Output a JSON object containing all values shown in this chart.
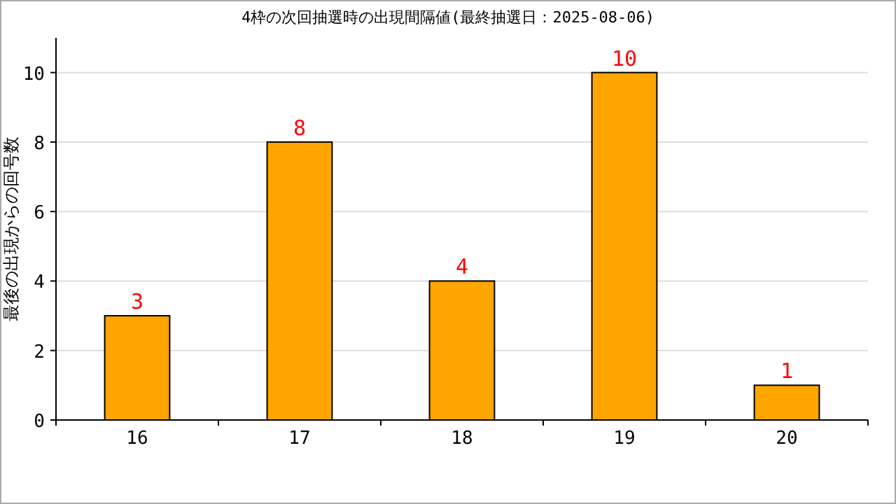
{
  "chart_data": {
    "type": "bar",
    "title": "4枠の次回抽選時の出現間隔値(最終抽選日：2025-08-06)",
    "ylabel": "最後の出現からの回号数",
    "categories": [
      "16",
      "17",
      "18",
      "19",
      "20"
    ],
    "values": [
      3,
      8,
      4,
      10,
      1
    ],
    "color": "#ffa500",
    "ylim": [
      0,
      11
    ],
    "yticks": [
      0,
      2,
      4,
      6,
      8,
      10
    ],
    "grid": "y",
    "data_labels": true
  }
}
